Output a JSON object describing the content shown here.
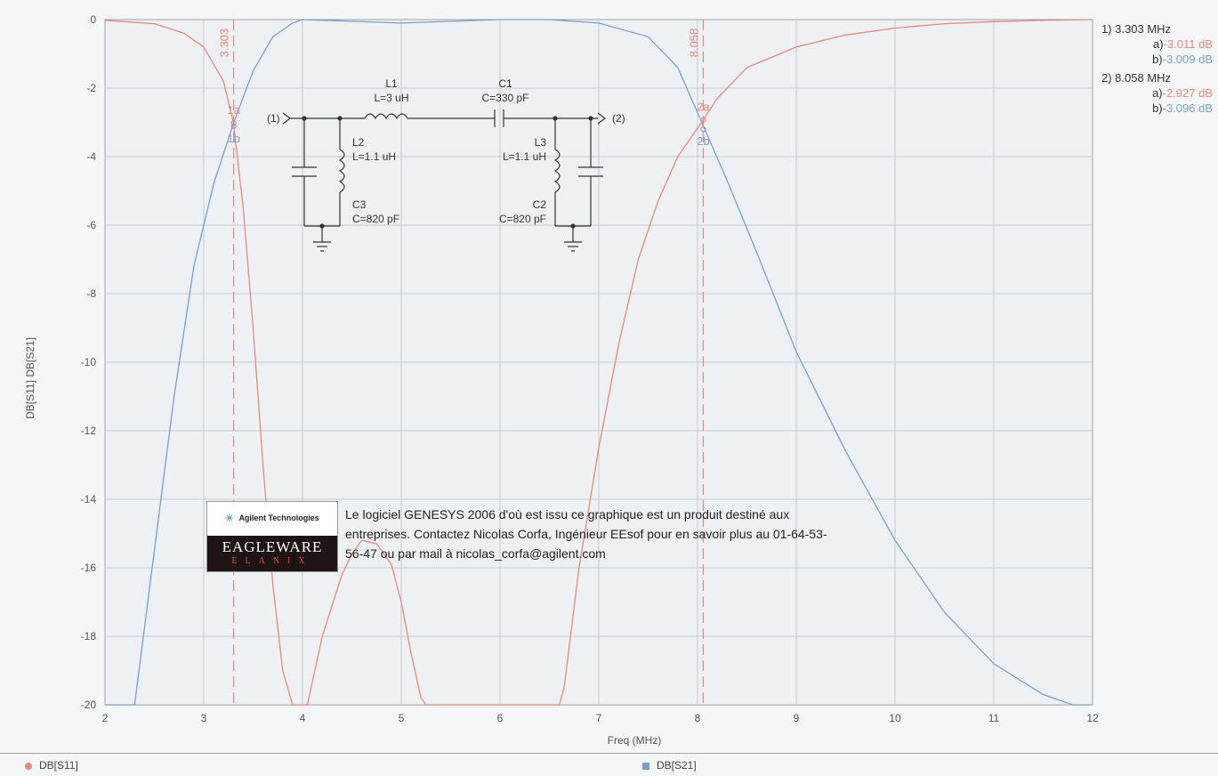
{
  "chart_data": {
    "type": "line",
    "xlabel": "Freq (MHz)",
    "ylabel": "DB[S11] DB[S21]",
    "xlim": [
      2,
      12
    ],
    "ylim": [
      -20,
      0
    ],
    "x_ticks": [
      "2",
      "3",
      "4",
      "5",
      "6",
      "7",
      "8",
      "9",
      "10",
      "11",
      "12"
    ],
    "y_ticks": [
      "0",
      "-2",
      "-4",
      "-6",
      "-8",
      "-10",
      "-12",
      "-14",
      "-16",
      "-18",
      "-20"
    ],
    "grid": true,
    "series": [
      {
        "name": "DB[S11]",
        "color": "#e8877c",
        "x": [
          2.0,
          2.5,
          2.8,
          3.0,
          3.2,
          3.3,
          3.4,
          3.5,
          3.6,
          3.7,
          3.8,
          3.9,
          4.0,
          4.05,
          4.2,
          4.4,
          4.5,
          4.6,
          4.75,
          4.9,
          5.0,
          5.1,
          5.2,
          5.25,
          5.3,
          5.6,
          6.0,
          6.4,
          6.6,
          6.65,
          6.8,
          7.0,
          7.2,
          7.4,
          7.6,
          7.8,
          8.058,
          8.2,
          8.5,
          9.0,
          9.5,
          10.0,
          10.5,
          11.0,
          11.5,
          12.0
        ],
        "y": [
          -0.02,
          -0.12,
          -0.4,
          -0.8,
          -1.8,
          -3.011,
          -5.5,
          -9,
          -13,
          -16.5,
          -19,
          -20,
          -20,
          -20,
          -18,
          -16.2,
          -15.6,
          -15.2,
          -15.3,
          -15.9,
          -17,
          -18.5,
          -19.8,
          -20,
          -20,
          -20,
          -20,
          -20,
          -20,
          -19.5,
          -16,
          -12.5,
          -9.5,
          -7,
          -5.3,
          -4,
          -2.927,
          -2.3,
          -1.4,
          -0.8,
          -0.45,
          -0.25,
          -0.12,
          -0.06,
          -0.02,
          0
        ]
      },
      {
        "name": "DB[S21]",
        "color": "#7ba0c8",
        "x": [
          2.0,
          2.3,
          2.5,
          2.7,
          2.9,
          3.1,
          3.303,
          3.5,
          3.7,
          3.9,
          4.0,
          4.5,
          5.0,
          5.5,
          6.0,
          6.5,
          7.0,
          7.5,
          7.8,
          8.058,
          8.3,
          8.6,
          9.0,
          9.5,
          10.0,
          10.5,
          11.0,
          11.5,
          11.8,
          12.0
        ],
        "y": [
          -20,
          -20,
          -15.5,
          -11,
          -7.2,
          -4.8,
          -3.009,
          -1.5,
          -0.5,
          -0.1,
          0,
          -0.05,
          -0.1,
          -0.05,
          0,
          0,
          -0.1,
          -0.5,
          -1.4,
          -3.096,
          -4.7,
          -6.8,
          -9.7,
          -12.6,
          -15.2,
          -17.3,
          -18.8,
          -19.7,
          -20,
          -20
        ]
      }
    ],
    "markers": [
      {
        "freq": 3.303,
        "freq_label": "3.303",
        "a_label": "1a",
        "b_label": "1b",
        "a_value": -3.011,
        "b_value": -3.009
      },
      {
        "freq": 8.058,
        "freq_label": "8.058",
        "a_label": "2a",
        "b_label": "2b",
        "a_value": -2.927,
        "b_value": -3.096
      }
    ],
    "readouts": [
      {
        "title": "1) 3.303 MHz",
        "a_prefix": "a)",
        "a_text": "-3.011 dB",
        "b_prefix": "b)",
        "b_text": "-3.009 dB"
      },
      {
        "title": "2) 8.058 MHz",
        "a_prefix": "a)",
        "a_text": "-2.927 dB",
        "b_prefix": "b)",
        "b_text": "-3.096 dB"
      }
    ],
    "legend": [
      {
        "label": "DB[S11]",
        "color": "#e8877c"
      },
      {
        "label": "DB[S21]",
        "color": "#7ba0c8"
      }
    ]
  },
  "circuit": {
    "port1": "(1)",
    "port2": "(2)",
    "L1_name": "L1",
    "L1_value": "L=3 uH",
    "C1_name": "C1",
    "C1_value": "C=330 pF",
    "L2_name": "L2",
    "L2_value": "L=1.1 uH",
    "L3_name": "L3",
    "L3_value": "L=1.1 uH",
    "C3_name": "C3",
    "C3_value": "C=820 pF",
    "C2_name": "C2",
    "C2_value": "C=820 pF"
  },
  "ad": {
    "agilent_logo": "Agilent Technologies",
    "eagleware_logo": "EAGLEWARE",
    "elanix_logo": "ELANIX",
    "text": "Le logiciel GENESYS 2006 d'où est issu ce graphique est un produit destiné aux entreprises. Contactez Nicolas Corfa, Ingénieur EEsof pour en savoir plus au 01-64-53-56-47 ou par mail à nicolas_corfa@agilent.com"
  }
}
